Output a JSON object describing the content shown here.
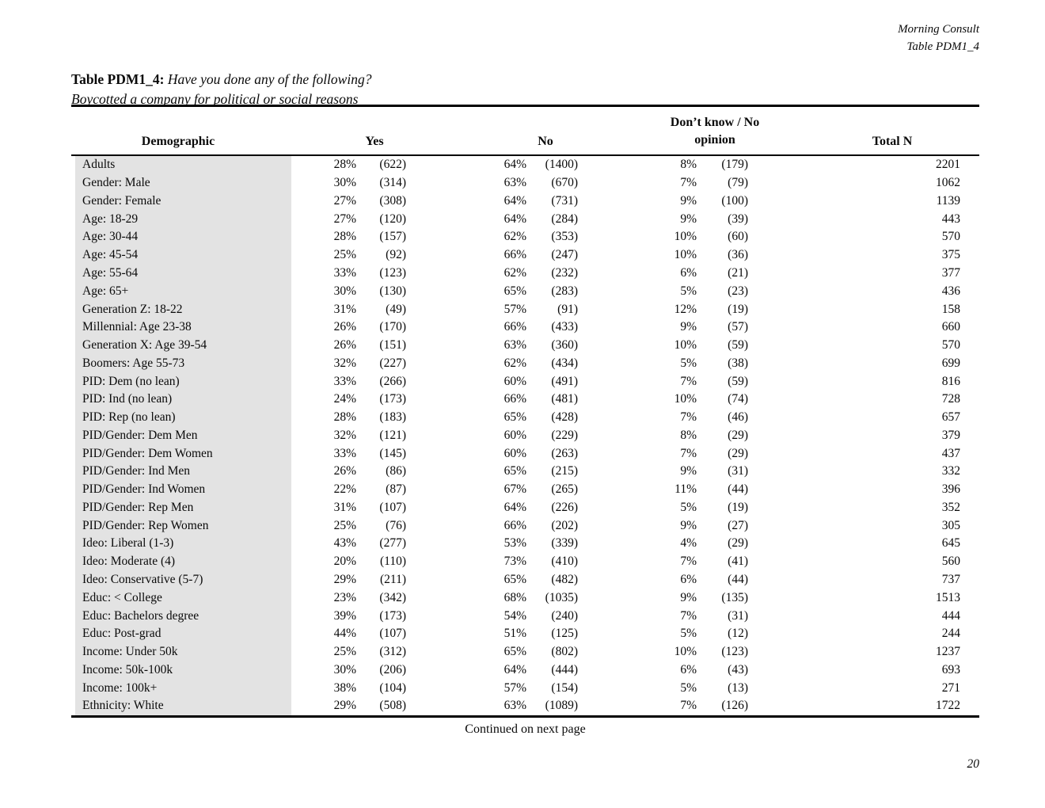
{
  "doc": {
    "header_right_line1": "Morning Consult",
    "header_right_line2": "Table PDM1_4",
    "title_label": "Table PDM1_4:",
    "title_question": "Have you done any of the following?",
    "title_sub": "Boycotted a company for political or social reasons",
    "continued_note": "Continued on next page",
    "page_number": "20"
  },
  "table": {
    "headers": {
      "demographic": "Demographic",
      "yes": "Yes",
      "no": "No",
      "dk_line1": "Don’t know / No",
      "dk_line2": "opinion",
      "total": "Total N"
    },
    "shaded_column_color": "#e3e3e3",
    "rows": [
      {
        "label": "Adults",
        "yes_pct": "28%",
        "yes_n": "(622)",
        "no_pct": "64%",
        "no_n": "(1400)",
        "dk_pct": "8%",
        "dk_n": "(179)",
        "total": "2201"
      },
      {
        "label": "Gender: Male",
        "yes_pct": "30%",
        "yes_n": "(314)",
        "no_pct": "63%",
        "no_n": "(670)",
        "dk_pct": "7%",
        "dk_n": "(79)",
        "total": "1062"
      },
      {
        "label": "Gender: Female",
        "yes_pct": "27%",
        "yes_n": "(308)",
        "no_pct": "64%",
        "no_n": "(731)",
        "dk_pct": "9%",
        "dk_n": "(100)",
        "total": "1139"
      },
      {
        "label": "Age: 18-29",
        "yes_pct": "27%",
        "yes_n": "(120)",
        "no_pct": "64%",
        "no_n": "(284)",
        "dk_pct": "9%",
        "dk_n": "(39)",
        "total": "443"
      },
      {
        "label": "Age: 30-44",
        "yes_pct": "28%",
        "yes_n": "(157)",
        "no_pct": "62%",
        "no_n": "(353)",
        "dk_pct": "10%",
        "dk_n": "(60)",
        "total": "570"
      },
      {
        "label": "Age: 45-54",
        "yes_pct": "25%",
        "yes_n": "(92)",
        "no_pct": "66%",
        "no_n": "(247)",
        "dk_pct": "10%",
        "dk_n": "(36)",
        "total": "375"
      },
      {
        "label": "Age: 55-64",
        "yes_pct": "33%",
        "yes_n": "(123)",
        "no_pct": "62%",
        "no_n": "(232)",
        "dk_pct": "6%",
        "dk_n": "(21)",
        "total": "377"
      },
      {
        "label": "Age: 65+",
        "yes_pct": "30%",
        "yes_n": "(130)",
        "no_pct": "65%",
        "no_n": "(283)",
        "dk_pct": "5%",
        "dk_n": "(23)",
        "total": "436"
      },
      {
        "label": "Generation Z: 18-22",
        "yes_pct": "31%",
        "yes_n": "(49)",
        "no_pct": "57%",
        "no_n": "(91)",
        "dk_pct": "12%",
        "dk_n": "(19)",
        "total": "158"
      },
      {
        "label": "Millennial: Age 23-38",
        "yes_pct": "26%",
        "yes_n": "(170)",
        "no_pct": "66%",
        "no_n": "(433)",
        "dk_pct": "9%",
        "dk_n": "(57)",
        "total": "660"
      },
      {
        "label": "Generation X: Age 39-54",
        "yes_pct": "26%",
        "yes_n": "(151)",
        "no_pct": "63%",
        "no_n": "(360)",
        "dk_pct": "10%",
        "dk_n": "(59)",
        "total": "570"
      },
      {
        "label": "Boomers: Age 55-73",
        "yes_pct": "32%",
        "yes_n": "(227)",
        "no_pct": "62%",
        "no_n": "(434)",
        "dk_pct": "5%",
        "dk_n": "(38)",
        "total": "699"
      },
      {
        "label": "PID: Dem (no lean)",
        "yes_pct": "33%",
        "yes_n": "(266)",
        "no_pct": "60%",
        "no_n": "(491)",
        "dk_pct": "7%",
        "dk_n": "(59)",
        "total": "816"
      },
      {
        "label": "PID: Ind (no lean)",
        "yes_pct": "24%",
        "yes_n": "(173)",
        "no_pct": "66%",
        "no_n": "(481)",
        "dk_pct": "10%",
        "dk_n": "(74)",
        "total": "728"
      },
      {
        "label": "PID: Rep (no lean)",
        "yes_pct": "28%",
        "yes_n": "(183)",
        "no_pct": "65%",
        "no_n": "(428)",
        "dk_pct": "7%",
        "dk_n": "(46)",
        "total": "657"
      },
      {
        "label": "PID/Gender: Dem Men",
        "yes_pct": "32%",
        "yes_n": "(121)",
        "no_pct": "60%",
        "no_n": "(229)",
        "dk_pct": "8%",
        "dk_n": "(29)",
        "total": "379"
      },
      {
        "label": "PID/Gender: Dem Women",
        "yes_pct": "33%",
        "yes_n": "(145)",
        "no_pct": "60%",
        "no_n": "(263)",
        "dk_pct": "7%",
        "dk_n": "(29)",
        "total": "437"
      },
      {
        "label": "PID/Gender: Ind Men",
        "yes_pct": "26%",
        "yes_n": "(86)",
        "no_pct": "65%",
        "no_n": "(215)",
        "dk_pct": "9%",
        "dk_n": "(31)",
        "total": "332"
      },
      {
        "label": "PID/Gender: Ind Women",
        "yes_pct": "22%",
        "yes_n": "(87)",
        "no_pct": "67%",
        "no_n": "(265)",
        "dk_pct": "11%",
        "dk_n": "(44)",
        "total": "396"
      },
      {
        "label": "PID/Gender: Rep Men",
        "yes_pct": "31%",
        "yes_n": "(107)",
        "no_pct": "64%",
        "no_n": "(226)",
        "dk_pct": "5%",
        "dk_n": "(19)",
        "total": "352"
      },
      {
        "label": "PID/Gender: Rep Women",
        "yes_pct": "25%",
        "yes_n": "(76)",
        "no_pct": "66%",
        "no_n": "(202)",
        "dk_pct": "9%",
        "dk_n": "(27)",
        "total": "305"
      },
      {
        "label": "Ideo: Liberal (1-3)",
        "yes_pct": "43%",
        "yes_n": "(277)",
        "no_pct": "53%",
        "no_n": "(339)",
        "dk_pct": "4%",
        "dk_n": "(29)",
        "total": "645"
      },
      {
        "label": "Ideo: Moderate (4)",
        "yes_pct": "20%",
        "yes_n": "(110)",
        "no_pct": "73%",
        "no_n": "(410)",
        "dk_pct": "7%",
        "dk_n": "(41)",
        "total": "560"
      },
      {
        "label": "Ideo: Conservative (5-7)",
        "yes_pct": "29%",
        "yes_n": "(211)",
        "no_pct": "65%",
        "no_n": "(482)",
        "dk_pct": "6%",
        "dk_n": "(44)",
        "total": "737"
      },
      {
        "label": "Educ: < College",
        "yes_pct": "23%",
        "yes_n": "(342)",
        "no_pct": "68%",
        "no_n": "(1035)",
        "dk_pct": "9%",
        "dk_n": "(135)",
        "total": "1513"
      },
      {
        "label": "Educ: Bachelors degree",
        "yes_pct": "39%",
        "yes_n": "(173)",
        "no_pct": "54%",
        "no_n": "(240)",
        "dk_pct": "7%",
        "dk_n": "(31)",
        "total": "444"
      },
      {
        "label": "Educ: Post-grad",
        "yes_pct": "44%",
        "yes_n": "(107)",
        "no_pct": "51%",
        "no_n": "(125)",
        "dk_pct": "5%",
        "dk_n": "(12)",
        "total": "244"
      },
      {
        "label": "Income: Under 50k",
        "yes_pct": "25%",
        "yes_n": "(312)",
        "no_pct": "65%",
        "no_n": "(802)",
        "dk_pct": "10%",
        "dk_n": "(123)",
        "total": "1237"
      },
      {
        "label": "Income: 50k-100k",
        "yes_pct": "30%",
        "yes_n": "(206)",
        "no_pct": "64%",
        "no_n": "(444)",
        "dk_pct": "6%",
        "dk_n": "(43)",
        "total": "693"
      },
      {
        "label": "Income: 100k+",
        "yes_pct": "38%",
        "yes_n": "(104)",
        "no_pct": "57%",
        "no_n": "(154)",
        "dk_pct": "5%",
        "dk_n": "(13)",
        "total": "271"
      },
      {
        "label": "Ethnicity: White",
        "yes_pct": "29%",
        "yes_n": "(508)",
        "no_pct": "63%",
        "no_n": "(1089)",
        "dk_pct": "7%",
        "dk_n": "(126)",
        "total": "1722"
      }
    ]
  }
}
